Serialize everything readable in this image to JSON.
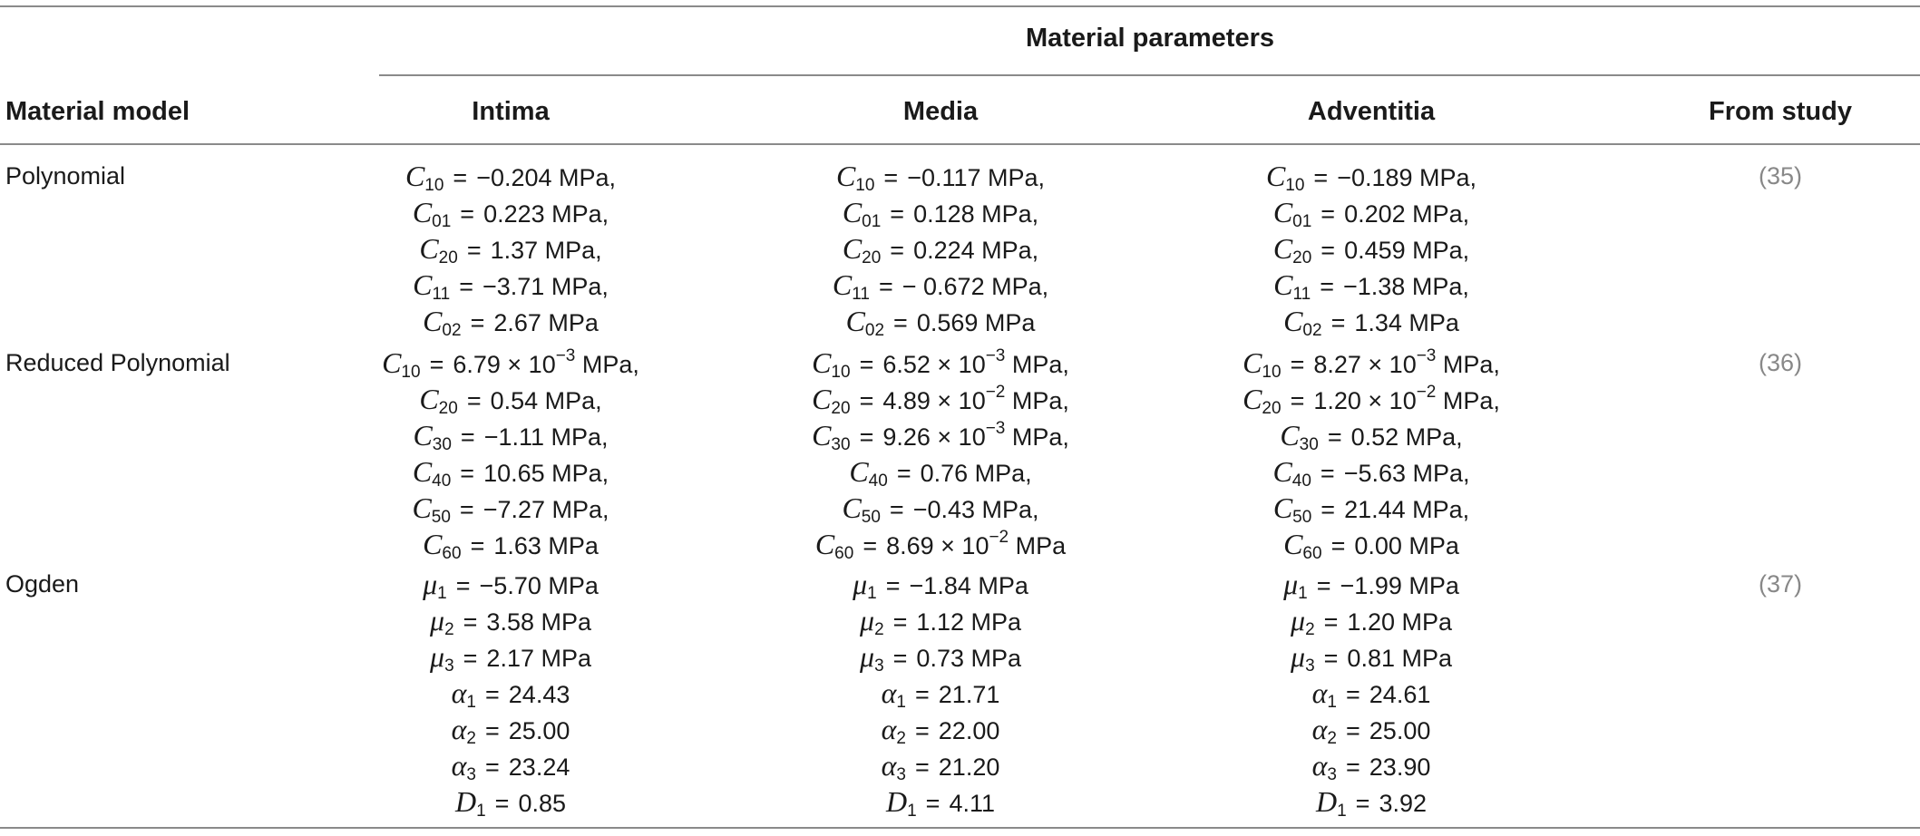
{
  "header": {
    "group_label": "Material parameters",
    "col_model": "Material model",
    "col_intima": "Intima",
    "col_media": "Media",
    "col_adventitia": "Adventitia",
    "col_study": "From study"
  },
  "rows": [
    {
      "model": "Polynomial",
      "ref": "(35)",
      "intima": [
        {
          "sym": "C",
          "sub": "10",
          "val": "−0.204 MPa,"
        },
        {
          "sym": "C",
          "sub": "01",
          "val": "0.223 MPa,"
        },
        {
          "sym": "C",
          "sub": "20",
          "val": "1.37 MPa,"
        },
        {
          "sym": "C",
          "sub": "11",
          "val": "−3.71 MPa,"
        },
        {
          "sym": "C",
          "sub": "02",
          "val": "2.67 MPa"
        }
      ],
      "media": [
        {
          "sym": "C",
          "sub": "10",
          "val": "−0.117 MPa,"
        },
        {
          "sym": "C",
          "sub": "01",
          "val": "0.128 MPa,"
        },
        {
          "sym": "C",
          "sub": "20",
          "val": "0.224 MPa,"
        },
        {
          "sym": "C",
          "sub": "11",
          "val": "− 0.672 MPa,"
        },
        {
          "sym": "C",
          "sub": "02",
          "val": "0.569 MPa"
        }
      ],
      "adventitia": [
        {
          "sym": "C",
          "sub": "10",
          "val": "−0.189 MPa,"
        },
        {
          "sym": "C",
          "sub": "01",
          "val": "0.202 MPa,"
        },
        {
          "sym": "C",
          "sub": "20",
          "val": "0.459 MPa,"
        },
        {
          "sym": "C",
          "sub": "11",
          "val": "−1.38 MPa,"
        },
        {
          "sym": "C",
          "sub": "02",
          "val": "1.34 MPa"
        }
      ]
    },
    {
      "model": "Reduced Polynomial",
      "ref": "(36)",
      "intima": [
        {
          "sym": "C",
          "sub": "10",
          "val": "6.79 × 10",
          "exp": "−3",
          "unit": " MPa,"
        },
        {
          "sym": "C",
          "sub": "20",
          "val": "0.54 MPa,"
        },
        {
          "sym": "C",
          "sub": "30",
          "val": "−1.11 MPa,"
        },
        {
          "sym": "C",
          "sub": "40",
          "val": "10.65 MPa,"
        },
        {
          "sym": "C",
          "sub": "50",
          "val": "−7.27 MPa,"
        },
        {
          "sym": "C",
          "sub": "60",
          "val": "1.63 MPa"
        }
      ],
      "media": [
        {
          "sym": "C",
          "sub": "10",
          "val": "6.52 × 10",
          "exp": "−3",
          "unit": " MPa,"
        },
        {
          "sym": "C",
          "sub": "20",
          "val": "4.89 × 10",
          "exp": "−2",
          "unit": " MPa,"
        },
        {
          "sym": "C",
          "sub": "30",
          "val": "9.26 × 10",
          "exp": "−3",
          "unit": " MPa,"
        },
        {
          "sym": "C",
          "sub": "40",
          "val": "0.76 MPa,"
        },
        {
          "sym": "C",
          "sub": "50",
          "val": "−0.43 MPa,"
        },
        {
          "sym": "C",
          "sub": "60",
          "val": "8.69 × 10",
          "exp": "−2",
          "unit": " MPa"
        }
      ],
      "adventitia": [
        {
          "sym": "C",
          "sub": "10",
          "val": "8.27 × 10",
          "exp": "−3",
          "unit": " MPa,"
        },
        {
          "sym": "C",
          "sub": "20",
          "val": "1.20 × 10",
          "exp": "−2",
          "unit": " MPa,"
        },
        {
          "sym": "C",
          "sub": "30",
          "val": "0.52 MPa,"
        },
        {
          "sym": "C",
          "sub": "40",
          "val": "−5.63 MPa,"
        },
        {
          "sym": "C",
          "sub": "50",
          "val": "21.44 MPa,"
        },
        {
          "sym": "C",
          "sub": "60",
          "val": "0.00 MPa"
        }
      ]
    },
    {
      "model": "Ogden",
      "ref": "(37)",
      "intima": [
        {
          "sym": "μ",
          "sub": "1",
          "val": "−5.70 MPa"
        },
        {
          "sym": "μ",
          "sub": "2",
          "val": "3.58 MPa"
        },
        {
          "sym": "μ",
          "sub": "3",
          "val": "2.17 MPa"
        },
        {
          "sym": "α",
          "sub": "1",
          "val": "24.43"
        },
        {
          "sym": "α",
          "sub": "2",
          "val": "25.00"
        },
        {
          "sym": "α",
          "sub": "3",
          "val": "23.24"
        },
        {
          "sym": "D",
          "sub": "1",
          "val": "0.85"
        }
      ],
      "media": [
        {
          "sym": "μ",
          "sub": "1",
          "val": "−1.84 MPa"
        },
        {
          "sym": "μ",
          "sub": "2",
          "val": "1.12 MPa"
        },
        {
          "sym": "μ",
          "sub": "3",
          "val": "0.73 MPa"
        },
        {
          "sym": "α",
          "sub": "1",
          "val": "21.71"
        },
        {
          "sym": "α",
          "sub": "2",
          "val": "22.00"
        },
        {
          "sym": "α",
          "sub": "3",
          "val": "21.20"
        },
        {
          "sym": "D",
          "sub": "1",
          "val": "4.11"
        }
      ],
      "adventitia": [
        {
          "sym": "μ",
          "sub": "1",
          "val": "−1.99 MPa"
        },
        {
          "sym": "μ",
          "sub": "2",
          "val": "1.20 MPa"
        },
        {
          "sym": "μ",
          "sub": "3",
          "val": "0.81 MPa"
        },
        {
          "sym": "α",
          "sub": "1",
          "val": "24.61"
        },
        {
          "sym": "α",
          "sub": "2",
          "val": "25.00"
        },
        {
          "sym": "α",
          "sub": "3",
          "val": "23.90"
        },
        {
          "sym": "D",
          "sub": "1",
          "val": "3.92"
        }
      ]
    }
  ]
}
